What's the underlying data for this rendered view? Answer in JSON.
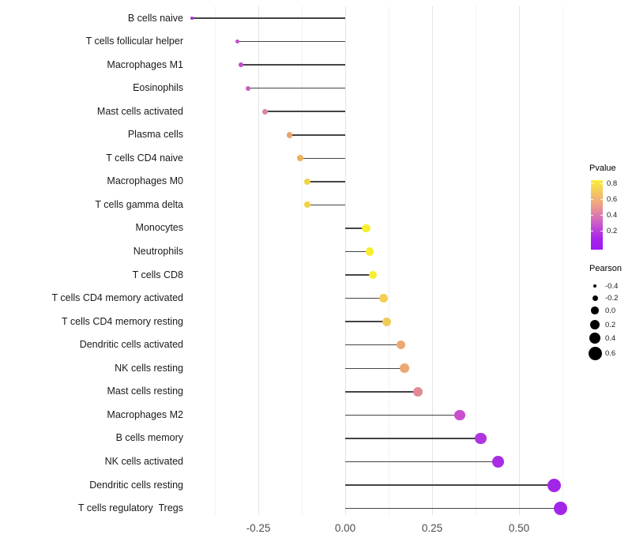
{
  "chart_data": {
    "type": "lollipop",
    "title": "",
    "xlabel": "",
    "ylabel": "",
    "x_axis": {
      "tick_labels": [
        "-0.25",
        "0.00",
        "0.25",
        "0.50"
      ],
      "tick_values": [
        -0.25,
        0.0,
        0.25,
        0.5
      ],
      "range": [
        -0.47,
        0.66
      ],
      "grid_step_minor": 0.125,
      "grid_on": true
    },
    "items": [
      {
        "label": "B cells naive",
        "pearson": -0.44,
        "color": "#A228E0"
      },
      {
        "label": "T cells follicular helper",
        "pearson": -0.31,
        "color": "#C44CCA"
      },
      {
        "label": "Macrophages M1",
        "pearson": -0.3,
        "color": "#C44CCA"
      },
      {
        "label": "Eosinophils",
        "pearson": -0.28,
        "color": "#C75FC0"
      },
      {
        "label": "Mast cells activated",
        "pearson": -0.23,
        "color": "#D487A6"
      },
      {
        "label": "Plasma cells",
        "pearson": -0.16,
        "color": "#EAA46E"
      },
      {
        "label": "T cells CD4 naive",
        "pearson": -0.13,
        "color": "#ECB25A"
      },
      {
        "label": "Macrophages M0",
        "pearson": -0.11,
        "color": "#F1D243"
      },
      {
        "label": "T cells gamma delta",
        "pearson": -0.11,
        "color": "#F1D243"
      },
      {
        "label": "Monocytes",
        "pearson": 0.06,
        "color": "#F6EE2F"
      },
      {
        "label": "Neutrophils",
        "pearson": 0.07,
        "color": "#F6EE2F"
      },
      {
        "label": "T cells CD8",
        "pearson": 0.08,
        "color": "#F6EE2F"
      },
      {
        "label": "T cells CD4 memory activated",
        "pearson": 0.11,
        "color": "#F0D055"
      },
      {
        "label": "T cells CD4 memory resting",
        "pearson": 0.12,
        "color": "#EFCB5C"
      },
      {
        "label": "Dendritic cells activated",
        "pearson": 0.16,
        "color": "#ECA873"
      },
      {
        "label": "NK cells resting",
        "pearson": 0.17,
        "color": "#ECA873"
      },
      {
        "label": "Mast cells resting",
        "pearson": 0.21,
        "color": "#E18A94"
      },
      {
        "label": "Macrophages M2",
        "pearson": 0.33,
        "color": "#C94FCC"
      },
      {
        "label": "B cells memory",
        "pearson": 0.39,
        "color": "#AE35DF"
      },
      {
        "label": "NK cells activated",
        "pearson": 0.44,
        "color": "#A92BE3"
      },
      {
        "label": "Dendritic cells resting",
        "pearson": 0.6,
        "color": "#A226E8"
      },
      {
        "label": "T cells regulatory  Tregs",
        "pearson": 0.62,
        "color": "#A226E8"
      }
    ],
    "legend": {
      "position": "right",
      "pvalue": {
        "title": "Pvalue",
        "tick_labels": [
          "0.8",
          "0.6",
          "0.4",
          "0.2"
        ],
        "gradient_top_to_bottom": [
          "#FBEE3B",
          "#F5C95E",
          "#EFA580",
          "#DF7BAD",
          "#C44FD2",
          "#A826E9",
          "#9D16F1"
        ]
      },
      "pearson": {
        "title": "Pearson",
        "entries": [
          {
            "label": "-0.4",
            "value": -0.4
          },
          {
            "label": "-0.2",
            "value": -0.2
          },
          {
            "label": "0.0",
            "value": 0.0
          },
          {
            "label": "0.2",
            "value": 0.2
          },
          {
            "label": "0.4",
            "value": 0.4
          },
          {
            "label": "0.6",
            "value": 0.6
          }
        ],
        "dot_color": "#000000"
      }
    },
    "stem_color": "#444444"
  }
}
